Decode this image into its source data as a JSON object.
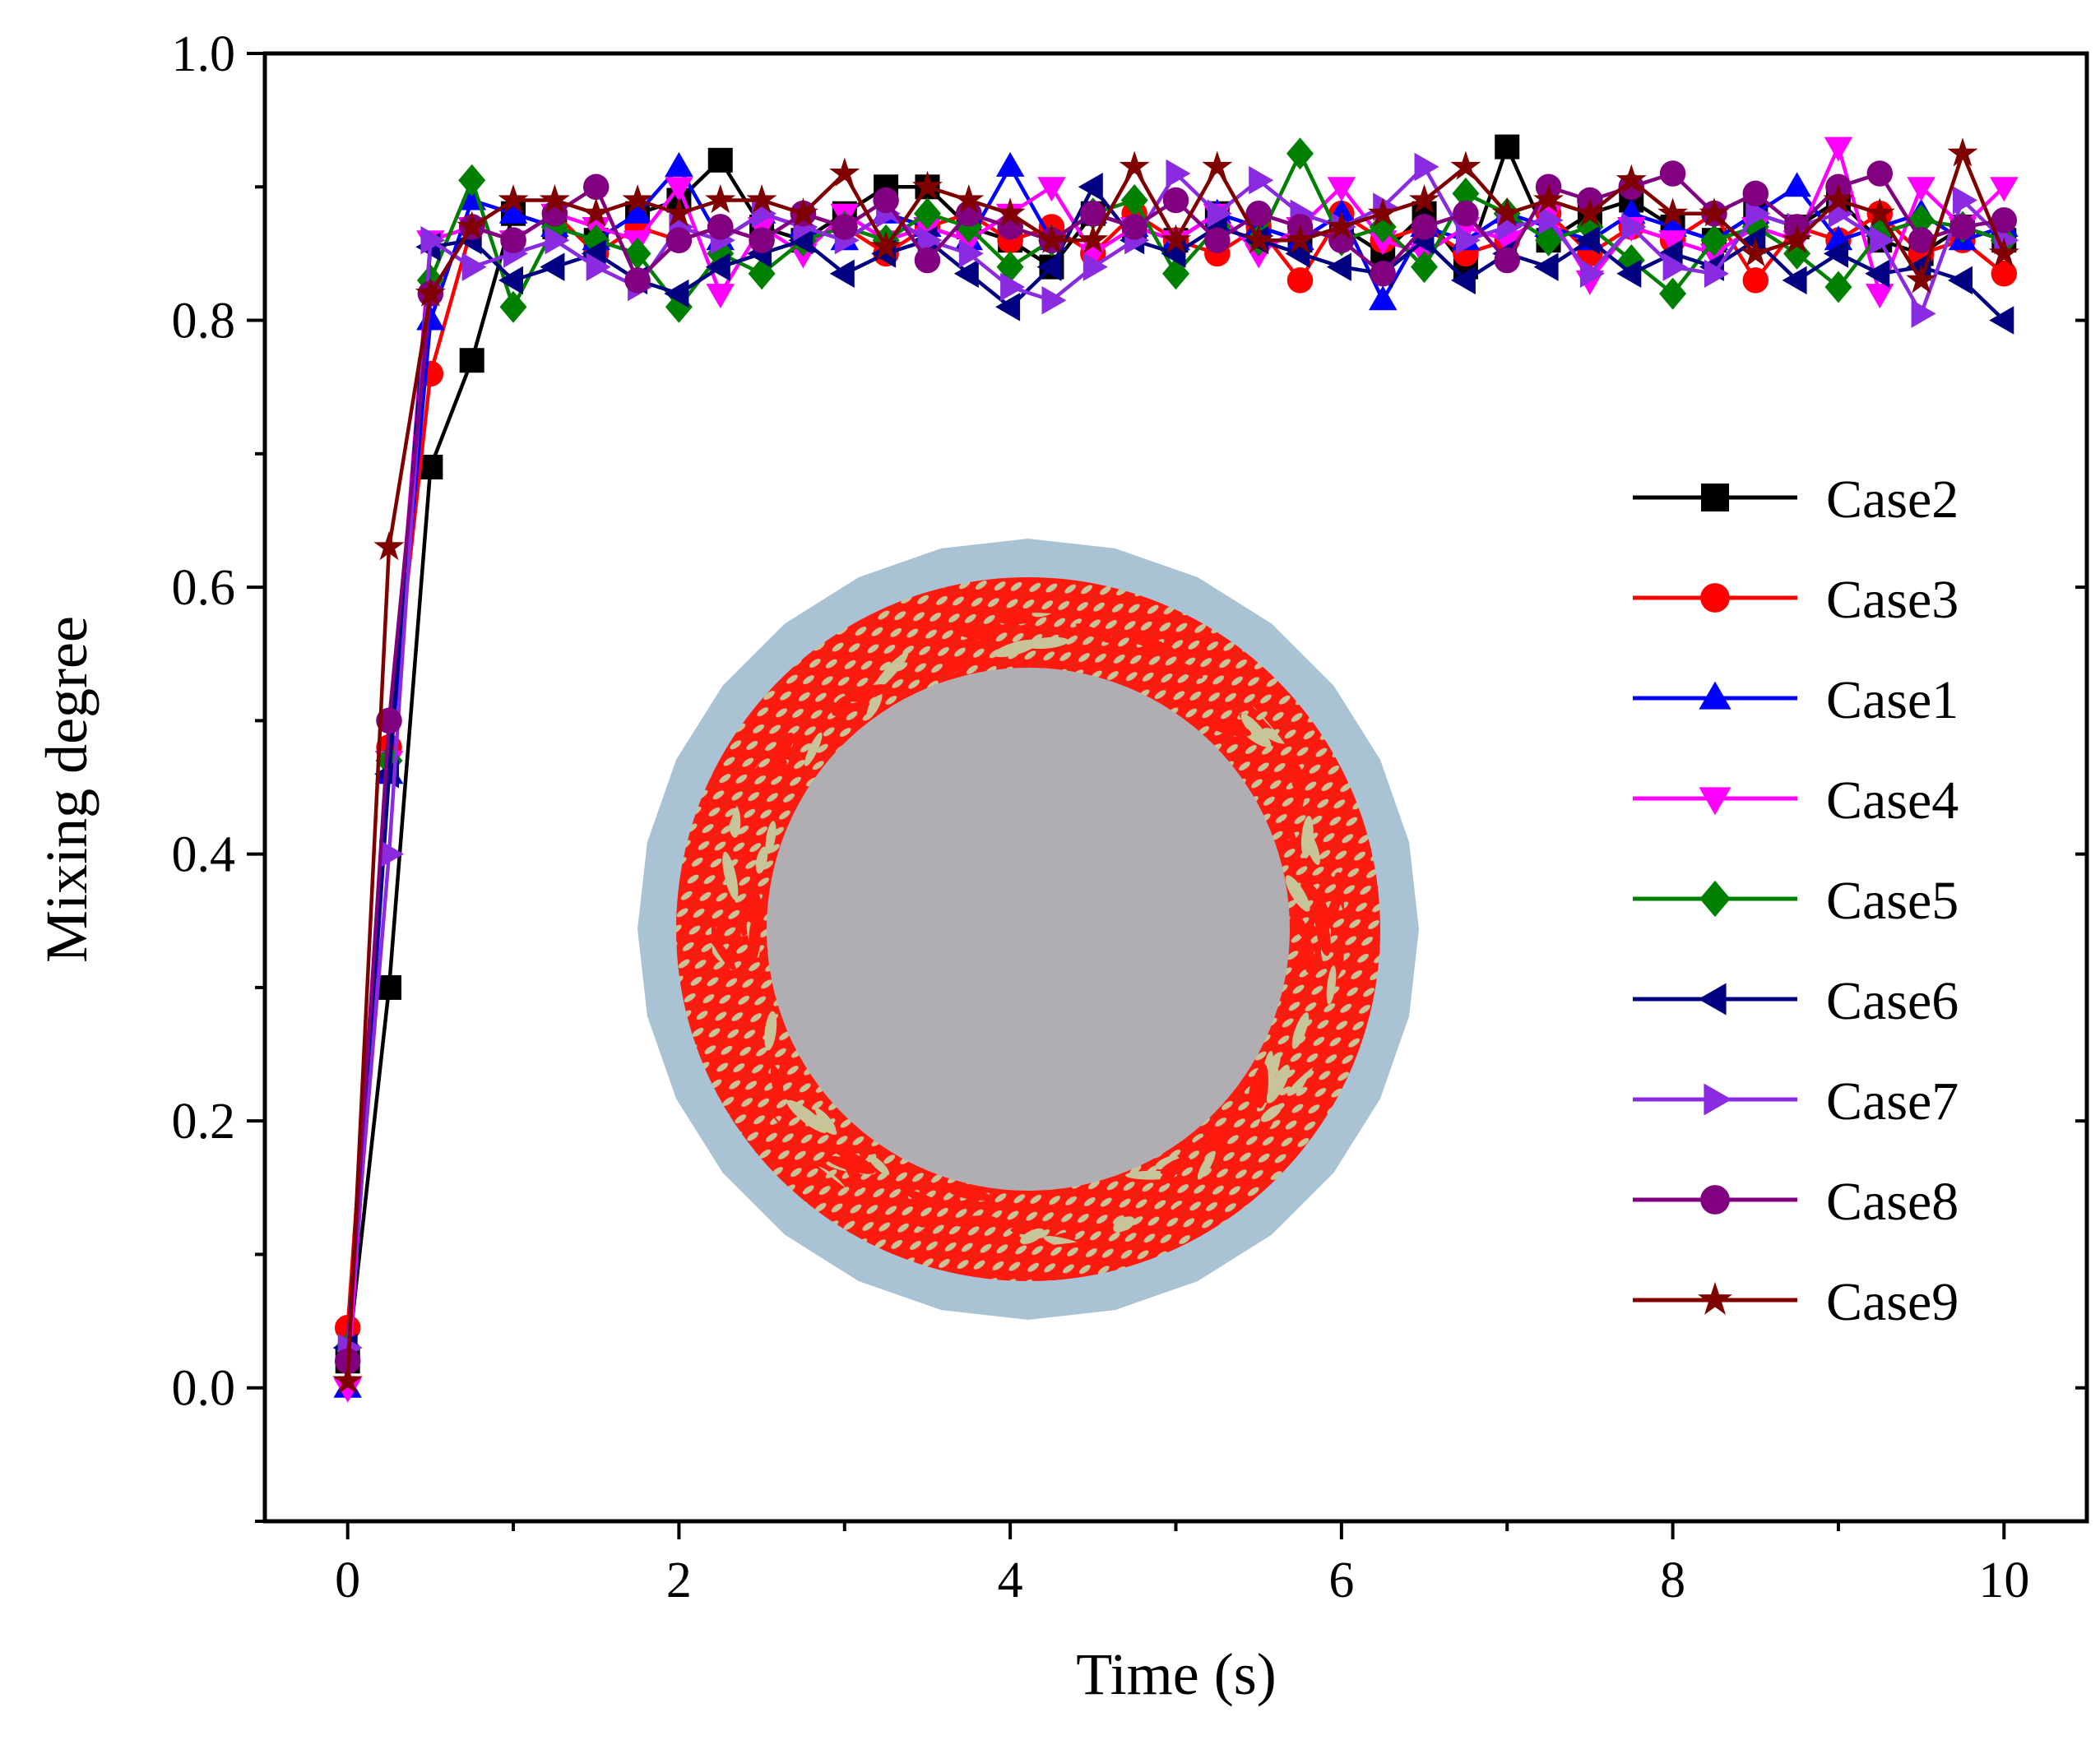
{
  "chart_data": {
    "type": "line",
    "title": "",
    "xlabel": "Time (s)",
    "ylabel": "Mixing degree",
    "xlim": [
      -0.5,
      10.5
    ],
    "ylim": [
      -0.1,
      1.0
    ],
    "xticks": [
      0,
      2,
      4,
      6,
      8,
      10
    ],
    "xtick_labels": [
      "0",
      "2",
      "4",
      "6",
      "8",
      "10"
    ],
    "yticks": [
      0.0,
      0.2,
      0.4,
      0.6,
      0.8,
      1.0
    ],
    "ytick_labels": [
      "0.0",
      "0.2",
      "0.4",
      "0.6",
      "0.8",
      "1.0"
    ],
    "grid": false,
    "legend_position": "right",
    "inset": "cross-section image of drum with red and beige particles",
    "x": [
      0,
      0.25,
      0.5,
      0.75,
      1,
      1.25,
      1.5,
      1.75,
      2,
      2.25,
      2.5,
      2.75,
      3,
      3.25,
      3.5,
      3.75,
      4,
      4.25,
      4.5,
      4.75,
      5,
      5.25,
      5.5,
      5.75,
      6,
      6.25,
      6.5,
      6.75,
      7,
      7.25,
      7.5,
      7.75,
      8,
      8.25,
      8.5,
      8.75,
      9,
      9.25,
      9.5,
      9.75,
      10
    ],
    "series": [
      {
        "name": "Case2",
        "color": "#000000",
        "marker": "square",
        "values": [
          0.02,
          0.3,
          0.69,
          0.77,
          0.88,
          0.87,
          0.86,
          0.88,
          0.89,
          0.92,
          0.87,
          0.86,
          0.88,
          0.9,
          0.9,
          0.87,
          0.86,
          0.84,
          0.88,
          0.87,
          0.86,
          0.88,
          0.87,
          0.86,
          0.87,
          0.85,
          0.88,
          0.84,
          0.93,
          0.86,
          0.88,
          0.89,
          0.87,
          0.86,
          0.88,
          0.87,
          0.89,
          0.86,
          0.85,
          0.87,
          0.86
        ]
      },
      {
        "name": "Case3",
        "color": "#ff0000",
        "marker": "circle",
        "values": [
          0.045,
          0.48,
          0.76,
          0.87,
          0.86,
          0.88,
          0.85,
          0.87,
          0.86,
          0.87,
          0.86,
          0.88,
          0.87,
          0.85,
          0.87,
          0.88,
          0.86,
          0.87,
          0.85,
          0.88,
          0.86,
          0.85,
          0.87,
          0.83,
          0.88,
          0.86,
          0.87,
          0.85,
          0.86,
          0.88,
          0.85,
          0.87,
          0.86,
          0.88,
          0.83,
          0.87,
          0.86,
          0.88,
          0.85,
          0.86,
          0.835
        ]
      },
      {
        "name": "Case1",
        "color": "#0000ff",
        "marker": "triangle-up",
        "values": [
          0.0,
          0.46,
          0.8,
          0.89,
          0.88,
          0.87,
          0.86,
          0.88,
          0.915,
          0.86,
          0.88,
          0.87,
          0.86,
          0.88,
          0.87,
          0.86,
          0.915,
          0.86,
          0.88,
          0.87,
          0.86,
          0.88,
          0.87,
          0.86,
          0.88,
          0.815,
          0.87,
          0.86,
          0.88,
          0.87,
          0.86,
          0.88,
          0.87,
          0.86,
          0.88,
          0.9,
          0.86,
          0.87,
          0.88,
          0.86,
          0.87
        ]
      },
      {
        "name": "Case4",
        "color": "#ff00ff",
        "marker": "triangle-down",
        "values": [
          0.0,
          0.47,
          0.86,
          0.87,
          0.86,
          0.88,
          0.87,
          0.86,
          0.9,
          0.82,
          0.87,
          0.85,
          0.88,
          0.86,
          0.87,
          0.86,
          0.88,
          0.9,
          0.85,
          0.87,
          0.86,
          0.88,
          0.85,
          0.87,
          0.9,
          0.86,
          0.85,
          0.87,
          0.86,
          0.88,
          0.83,
          0.87,
          0.86,
          0.85,
          0.87,
          0.86,
          0.93,
          0.82,
          0.9,
          0.87,
          0.9
        ]
      },
      {
        "name": "Case5",
        "color": "#008000",
        "marker": "diamond",
        "values": [
          0.03,
          0.47,
          0.83,
          0.905,
          0.81,
          0.87,
          0.86,
          0.85,
          0.81,
          0.85,
          0.835,
          0.86,
          0.87,
          0.86,
          0.88,
          0.87,
          0.84,
          0.86,
          0.88,
          0.89,
          0.835,
          0.87,
          0.86,
          0.925,
          0.86,
          0.87,
          0.84,
          0.895,
          0.88,
          0.86,
          0.87,
          0.845,
          0.82,
          0.86,
          0.87,
          0.85,
          0.825,
          0.865,
          0.875,
          0.87,
          0.86
        ]
      },
      {
        "name": "Case6",
        "color": "#000080",
        "marker": "triangle-left",
        "values": [
          0.03,
          0.46,
          0.855,
          0.86,
          0.83,
          0.84,
          0.85,
          0.83,
          0.82,
          0.84,
          0.85,
          0.86,
          0.835,
          0.85,
          0.86,
          0.835,
          0.81,
          0.84,
          0.9,
          0.86,
          0.85,
          0.87,
          0.86,
          0.85,
          0.84,
          0.835,
          0.86,
          0.83,
          0.85,
          0.84,
          0.86,
          0.835,
          0.85,
          0.84,
          0.86,
          0.83,
          0.85,
          0.835,
          0.84,
          0.83,
          0.8
        ]
      },
      {
        "name": "Case7",
        "color": "#8a2be2",
        "marker": "triangle-right",
        "values": [
          0.03,
          0.4,
          0.86,
          0.84,
          0.85,
          0.86,
          0.84,
          0.825,
          0.87,
          0.86,
          0.88,
          0.87,
          0.86,
          0.88,
          0.86,
          0.85,
          0.825,
          0.815,
          0.84,
          0.86,
          0.91,
          0.88,
          0.905,
          0.88,
          0.87,
          0.885,
          0.915,
          0.86,
          0.87,
          0.875,
          0.835,
          0.87,
          0.84,
          0.835,
          0.88,
          0.87,
          0.88,
          0.86,
          0.805,
          0.89,
          0.86
        ]
      },
      {
        "name": "Case8",
        "color": "#800080",
        "marker": "circle",
        "values": [
          0.02,
          0.5,
          0.82,
          0.87,
          0.86,
          0.88,
          0.9,
          0.83,
          0.86,
          0.87,
          0.86,
          0.88,
          0.87,
          0.89,
          0.845,
          0.88,
          0.87,
          0.86,
          0.88,
          0.87,
          0.89,
          0.86,
          0.88,
          0.87,
          0.86,
          0.835,
          0.87,
          0.88,
          0.845,
          0.9,
          0.89,
          0.9,
          0.91,
          0.88,
          0.895,
          0.87,
          0.9,
          0.91,
          0.86,
          0.87,
          0.875
        ]
      },
      {
        "name": "Case9",
        "color": "#800000",
        "marker": "star",
        "values": [
          0.005,
          0.63,
          0.82,
          0.87,
          0.89,
          0.89,
          0.88,
          0.89,
          0.88,
          0.89,
          0.89,
          0.88,
          0.91,
          0.855,
          0.9,
          0.89,
          0.88,
          0.86,
          0.86,
          0.915,
          0.86,
          0.915,
          0.86,
          0.86,
          0.87,
          0.88,
          0.89,
          0.915,
          0.88,
          0.89,
          0.88,
          0.905,
          0.88,
          0.88,
          0.85,
          0.86,
          0.89,
          0.88,
          0.83,
          0.925,
          0.85
        ]
      }
    ]
  }
}
